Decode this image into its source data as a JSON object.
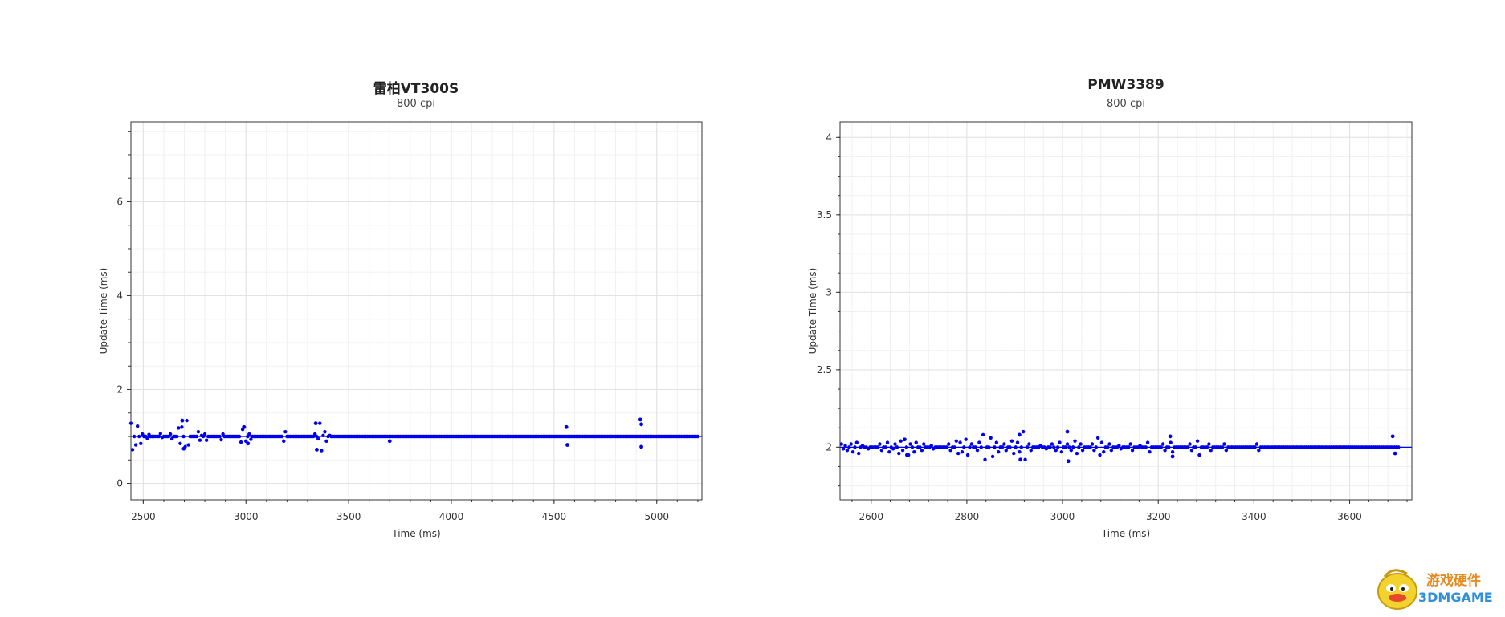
{
  "chart_data": [
    {
      "type": "scatter",
      "title": "雷柏VT300S",
      "subtitle": "800 cpi",
      "xlabel": "Time (ms)",
      "ylabel": "Update Time (ms)",
      "xlim": [
        2440,
        5220
      ],
      "ylim": [
        -0.35,
        7.7
      ],
      "xticks": [
        2500,
        3000,
        3500,
        4000,
        4500,
        5000
      ],
      "yticks": [
        0,
        2,
        4,
        6
      ],
      "grid": true,
      "color": "#0000ee",
      "baseline": 1.0,
      "series": [
        {
          "x_start": 2440,
          "x_step": 8,
          "y": [
            1.28,
            0.72,
            1.0,
            0.82,
            1.22,
            1.0,
            0.85,
            1.05,
            1.0,
            1.0,
            0.96,
            1.04,
            1.0,
            1.0,
            1.0,
            1.0,
            1.0,
            1.0,
            1.06,
            0.98,
            1.0,
            1.0,
            1.0,
            1.0,
            1.05,
            0.95,
            1.0,
            1.0,
            1.0,
            1.18,
            0.85,
            1.2,
            1.0,
            0.78,
            1.34,
            0.82,
            1.0,
            1.0,
            1.0,
            1.0,
            1.0,
            1.1,
            0.92,
            1.02,
            1.0,
            1.05,
            0.92,
            1.0,
            1.0,
            1.0,
            1.0,
            1.0,
            1.0,
            1.0,
            1.0,
            0.93,
            1.05,
            1.0,
            1.0,
            1.0,
            1.0,
            1.0,
            1.0,
            1.0,
            1.0,
            1.0,
            1.0,
            0.88,
            1.15,
            1.2,
            0.9,
            1.0,
            1.05,
            0.94,
            1.0,
            1.0,
            1.0,
            1.0,
            1.0,
            1.0,
            1.0,
            1.0,
            1.0,
            1.0,
            1.0,
            1.0,
            1.0,
            1.0,
            1.0,
            1.0,
            1.0,
            1.0,
            1.0,
            0.9,
            1.1,
            1.0,
            1.0,
            1.0,
            1.0,
            1.0,
            1.0,
            1.0,
            1.0,
            1.0,
            1.0,
            1.0,
            1.0,
            1.0,
            1.0,
            1.0,
            1.0,
            1.0,
            1.05,
            1.0,
            0.95,
            1.28,
            0.7,
            1.02,
            1.1,
            0.9,
            1.0,
            1.02,
            1.0,
            1.0,
            1.0,
            1.0,
            1.0,
            1.0,
            1.0,
            1.0,
            1.0,
            1.0,
            1.0,
            1.0,
            1.0,
            1.0,
            1.0,
            1.0,
            1.0,
            1.0,
            1.0,
            1.0,
            1.0,
            1.0,
            1.0,
            1.0,
            1.0,
            1.0,
            1.0,
            1.0,
            1.0,
            1.0,
            1.0,
            1.0,
            1.0,
            1.0,
            1.0,
            1.0,
            1.0,
            1.0,
            1.0,
            1.0,
            1.0,
            1.0,
            1.0,
            1.0,
            1.0,
            1.0,
            1.0,
            1.0,
            1.0,
            1.0,
            1.0,
            1.0,
            1.0,
            1.0,
            1.0,
            1.0,
            1.0,
            1.0,
            1.0,
            1.0,
            1.0,
            1.0,
            1.0,
            1.0,
            1.0,
            1.0,
            1.0,
            1.0,
            1.0,
            1.0,
            1.0,
            1.0,
            1.0,
            1.0,
            1.0,
            1.0,
            1.0,
            1.0,
            1.0,
            1.0,
            1.0,
            1.0,
            1.0,
            1.0,
            1.0,
            1.0,
            1.0,
            1.0,
            1.0,
            1.0,
            1.0,
            1.0,
            1.0,
            1.0,
            1.0,
            1.0,
            1.0,
            1.0,
            1.0,
            1.0,
            1.0,
            1.0,
            1.0,
            1.0,
            1.0,
            1.0,
            1.0,
            1.0,
            1.0,
            1.0,
            1.0,
            1.0,
            1.0,
            1.0,
            1.0,
            1.0,
            1.0,
            1.0,
            1.0,
            1.0,
            1.0,
            1.0,
            1.0,
            1.0,
            1.0,
            1.0,
            1.0,
            1.0,
            1.0,
            1.0,
            1.0,
            1.0,
            1.0,
            1.0,
            1.0,
            1.0,
            1.0,
            1.0,
            1.0,
            1.0,
            1.0,
            1.0,
            1.0,
            1.0,
            1.0,
            1.0,
            1.0,
            1.0,
            1.0,
            1.0,
            1.0,
            1.0,
            1.0,
            1.0,
            1.0,
            1.0,
            1.0,
            1.0,
            1.0,
            1.0,
            1.0,
            1.0,
            1.0,
            1.0,
            1.0,
            1.0,
            1.0,
            1.0,
            1.0,
            1.0,
            1.0,
            1.0,
            1.0,
            1.0,
            1.0,
            1.0,
            1.0,
            1.0,
            1.0,
            1.0,
            1.0,
            1.0,
            1.0,
            1.0,
            1.0,
            1.0,
            1.0,
            1.0,
            1.0,
            1.0,
            1.0,
            1.0,
            1.0,
            1.0,
            1.0,
            1.0,
            1.0,
            1.0,
            1.0,
            1.0,
            1.0,
            1.0,
            1.0,
            1.0,
            1.0,
            1.0,
            1.0,
            1.0,
            1.0,
            1.0,
            1.0,
            1.0,
            1.0,
            1.0,
            1.0,
            1.0,
            1.0,
            1.0,
            1.0,
            1.0,
            1.0,
            1.0,
            1.0,
            1.0
          ]
        }
      ],
      "outliers": [
        {
          "x": 2690,
          "y": 1.34
        },
        {
          "x": 2697,
          "y": 0.74
        },
        {
          "x": 3340,
          "y": 1.28
        },
        {
          "x": 3345,
          "y": 0.72
        },
        {
          "x": 3700,
          "y": 0.9
        },
        {
          "x": 4560,
          "y": 1.2
        },
        {
          "x": 4565,
          "y": 0.82
        },
        {
          "x": 4920,
          "y": 1.36
        },
        {
          "x": 4925,
          "y": 0.78
        },
        {
          "x": 4925,
          "y": 1.26
        },
        {
          "x": 2990,
          "y": 1.2
        },
        {
          "x": 3010,
          "y": 0.85
        }
      ]
    },
    {
      "type": "scatter",
      "title": "PMW3389",
      "subtitle": "800 cpi",
      "xlabel": "Time (ms)",
      "ylabel": "Update Time (ms)",
      "xlim": [
        2535,
        3730
      ],
      "ylim": [
        1.66,
        4.1
      ],
      "xticks": [
        2600,
        2800,
        3000,
        3200,
        3400,
        3600
      ],
      "yticks": [
        2,
        2.5,
        3,
        3.5,
        4
      ],
      "grid": true,
      "color": "#0000ee",
      "baseline": 2.0,
      "series": [
        {
          "x_start": 2538,
          "x_step": 4,
          "y": [
            2.02,
            1.99,
            2.01,
            1.98,
            2.0,
            2.02,
            1.97,
            2.0,
            2.03,
            1.96,
            2.0,
            2.01,
            2.0,
            2.0,
            1.99,
            2.0,
            2.0,
            2.0,
            2.0,
            2.0,
            2.02,
            1.98,
            2.0,
            2.0,
            2.03,
            1.97,
            2.0,
            1.99,
            2.02,
            2.0,
            1.96,
            2.04,
            1.98,
            2.05,
            2.0,
            1.95,
            2.02,
            2.0,
            1.97,
            2.03,
            2.0,
            2.0,
            1.98,
            2.02,
            2.0,
            2.0,
            2.0,
            2.01,
            1.99,
            2.0,
            2.0,
            2.0,
            2.0,
            2.0,
            2.0,
            2.0,
            2.02,
            1.98,
            2.0,
            2.0,
            2.04,
            1.96,
            2.03,
            1.97,
            2.0,
            2.05,
            1.95,
            2.0,
            2.02,
            2.0,
            2.0,
            1.98,
            2.03,
            2.0,
            2.08,
            1.92,
            2.0,
            2.0,
            2.06,
            1.94,
            2.0,
            2.03,
            1.97,
            2.0,
            2.0,
            2.02,
            1.98,
            2.0,
            2.0,
            2.04,
            1.96,
            2.0,
            2.03,
            1.97,
            2.0,
            2.1,
            1.92,
            2.0,
            2.02,
            1.98,
            2.0,
            2.0,
            2.0,
            2.0,
            2.01,
            2.0,
            2.0,
            1.99,
            2.0,
            2.0,
            2.02,
            2.0,
            1.98,
            2.0,
            2.03,
            1.97,
            2.0,
            2.0,
            2.02,
            2.0,
            1.98,
            2.0,
            2.04,
            1.96,
            2.0,
            2.02,
            1.98,
            2.0,
            2.0,
            2.0,
            2.0,
            2.02,
            1.98,
            2.0,
            2.06,
            1.95,
            2.03,
            1.97,
            2.0,
            2.0,
            2.02,
            1.98,
            2.0,
            2.0,
            2.0,
            2.01,
            1.99,
            2.0,
            2.0,
            2.0,
            2.0,
            2.02,
            1.98,
            2.0,
            2.0,
            2.0,
            2.01,
            2.0,
            2.0,
            2.0,
            2.03,
            1.97,
            2.0,
            2.0,
            2.0,
            2.0,
            2.0,
            2.0,
            2.02,
            1.98,
            2.0,
            2.0,
            2.03,
            1.97,
            2.0,
            2.0,
            2.0,
            2.0,
            2.0,
            2.0,
            2.0,
            2.0,
            2.02,
            1.98,
            2.0,
            2.0,
            2.04,
            1.95,
            2.0,
            2.0,
            2.0,
            2.0,
            2.02,
            1.98,
            2.0,
            2.0,
            2.0,
            2.0,
            2.0,
            2.0,
            2.02,
            1.98,
            2.0,
            2.0,
            2.0,
            2.0,
            2.0,
            2.0,
            2.0,
            2.0,
            2.0,
            2.0,
            2.0,
            2.0,
            2.0,
            2.0,
            2.0,
            2.02,
            1.98,
            2.0,
            2.0,
            2.0,
            2.0,
            2.0,
            2.0,
            2.0,
            2.0,
            2.0,
            2.0,
            2.0,
            2.0,
            2.0,
            2.0,
            2.0,
            2.0,
            2.0,
            2.0,
            2.0,
            2.0,
            2.0,
            2.0,
            2.0,
            2.0,
            2.0,
            2.0,
            2.0,
            2.0,
            2.0,
            2.0,
            2.0,
            2.0,
            2.0,
            2.0,
            2.0,
            2.0,
            2.0,
            2.0,
            2.0,
            2.0,
            2.0,
            2.0,
            2.0,
            2.0,
            2.0,
            2.0,
            2.0,
            2.0,
            2.0,
            2.0,
            2.0,
            2.0,
            2.0,
            2.0,
            2.0,
            2.0,
            2.0,
            2.0,
            2.0,
            2.0,
            2.0,
            2.0,
            2.0,
            2.0,
            2.0,
            2.0,
            2.0,
            2.0,
            2.0,
            2.0,
            2.0,
            2.0,
            2.0
          ]
        }
      ],
      "outliers": [
        {
          "x": 3010,
          "y": 2.1
        },
        {
          "x": 3012,
          "y": 1.91
        },
        {
          "x": 2910,
          "y": 2.08
        },
        {
          "x": 2912,
          "y": 1.92
        },
        {
          "x": 3225,
          "y": 2.07
        },
        {
          "x": 3230,
          "y": 1.94
        },
        {
          "x": 3690,
          "y": 2.07
        },
        {
          "x": 3695,
          "y": 1.96
        },
        {
          "x": 2670,
          "y": 2.05
        },
        {
          "x": 2675,
          "y": 1.95
        }
      ]
    }
  ],
  "watermark": {
    "line1": "游戏硬件",
    "line2": "3DMGAME"
  }
}
